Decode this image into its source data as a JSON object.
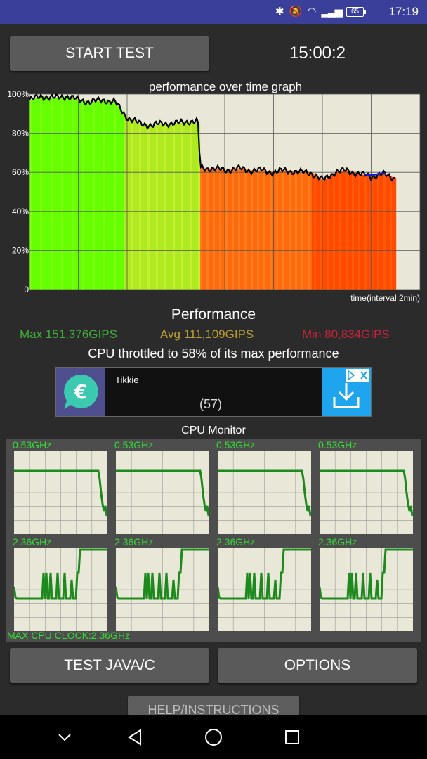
{
  "status_bar": {
    "time": "17:19",
    "battery_level": "65",
    "icons": [
      "bluetooth-icon",
      "mute-icon",
      "wifi-icon",
      "signal-icon",
      "battery-icon"
    ]
  },
  "controls": {
    "start_label": "START TEST",
    "timer": "15:00:2",
    "java_label": "TEST JAVA/C",
    "options_label": "OPTIONS",
    "help_label": "HELP/INSTRUCTIONS"
  },
  "chart_data": {
    "type": "line",
    "title": "performance over time graph",
    "xlabel": "time(interval 2min)",
    "ylabel": "",
    "ylim": [
      0,
      100
    ],
    "y_ticks": [
      "0",
      "20%",
      "40%",
      "60%",
      "80%",
      "100%"
    ],
    "x_grid_divisions": 8,
    "grid": true,
    "x_minutes": [
      0,
      0.5,
      1,
      1.5,
      2,
      2.5,
      3,
      3.5,
      4,
      4.5,
      5,
      5.5,
      6,
      6.5,
      6.9,
      7,
      7.5,
      8,
      8.5,
      9,
      9.5,
      10,
      10.5,
      11,
      11.5,
      12,
      12.5,
      13,
      13.5,
      14,
      14.5,
      15
    ],
    "values": [
      97,
      99,
      98,
      99,
      97,
      96,
      97,
      96,
      88,
      85,
      84,
      85,
      85,
      86,
      86,
      62,
      62,
      61,
      62,
      61,
      61,
      60,
      61,
      60,
      60,
      56,
      60,
      61,
      59,
      58,
      59,
      57
    ],
    "series_colors": [
      "#000000",
      "#1a1acc"
    ],
    "fill_colors": {
      "high": "#66ff00",
      "mid": "#aeea20",
      "low": "#ff6a10",
      "lowest": "#ff4a00"
    }
  },
  "performance": {
    "title": "Performance",
    "max": "Max 151,376GIPS",
    "avg": "Avg 111,109GIPS",
    "min": "Min 80,834GIPS",
    "throttle": "CPU throttled to 58% of its max performance",
    "colors": {
      "max": "#3fae3a",
      "avg": "#b8a030",
      "min": "#c8243a"
    }
  },
  "ad": {
    "name": "Tikkie",
    "count": "(57)",
    "icons": [
      "euro-icon",
      "download-icon",
      "adchoices-icon",
      "close-icon"
    ]
  },
  "cpu_monitor": {
    "title": "CPU Monitor",
    "max_clock": "MAX CPU CLOCK:2.36GHz",
    "cores": [
      {
        "freq": "0.53GHz",
        "row": "little"
      },
      {
        "freq": "0.53GHz",
        "row": "little"
      },
      {
        "freq": "0.53GHz",
        "row": "little"
      },
      {
        "freq": "0.53GHz",
        "row": "little"
      },
      {
        "freq": "2.36GHz",
        "row": "big"
      },
      {
        "freq": "2.36GHz",
        "row": "big"
      },
      {
        "freq": "2.36GHz",
        "row": "big"
      },
      {
        "freq": "2.36GHz",
        "row": "big"
      }
    ]
  },
  "navigation": {
    "icons": [
      "chevron-down-icon",
      "back-icon",
      "home-icon",
      "recents-icon"
    ]
  }
}
